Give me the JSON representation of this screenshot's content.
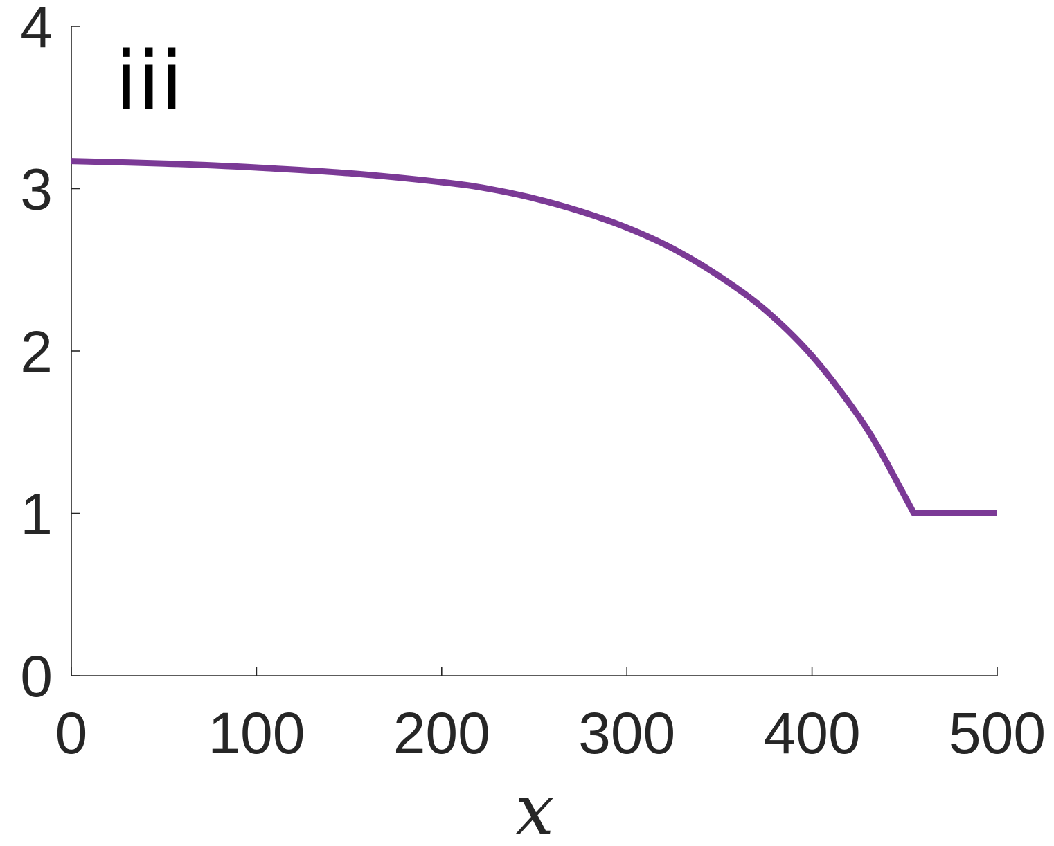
{
  "chart_data": {
    "type": "line",
    "panel_label": "iii",
    "title": "",
    "xlabel": "x",
    "ylabel": "",
    "xlim": [
      0,
      500
    ],
    "ylim": [
      0,
      4
    ],
    "x_ticks": [
      0,
      100,
      200,
      300,
      400,
      500
    ],
    "y_ticks": [
      0,
      1,
      2,
      3,
      4
    ],
    "grid": false,
    "series": [
      {
        "color": "#7b3a96",
        "x": [
          0,
          50,
          100,
          150,
          200,
          225,
          250,
          275,
          300,
          325,
          350,
          375,
          400,
          425,
          440,
          455,
          470,
          500
        ],
        "y": [
          3.17,
          3.155,
          3.13,
          3.095,
          3.04,
          3.0,
          2.94,
          2.86,
          2.76,
          2.63,
          2.46,
          2.25,
          1.97,
          1.6,
          1.32,
          1.0,
          1.0,
          1.0
        ]
      }
    ]
  }
}
